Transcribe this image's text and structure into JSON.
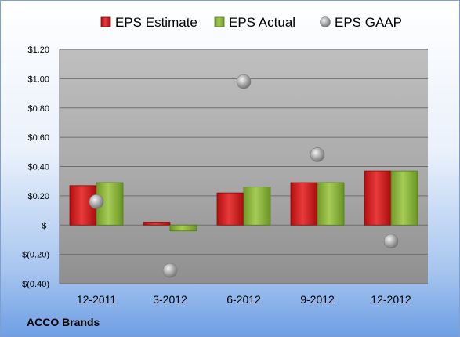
{
  "chart_data": {
    "type": "bar",
    "categories": [
      "12-2011",
      "3-2012",
      "6-2012",
      "9-2012",
      "12-2012"
    ],
    "series": [
      {
        "name": "EPS Estimate",
        "type": "bar",
        "color": "#cc1a1a",
        "values": [
          0.27,
          0.02,
          0.22,
          0.29,
          0.37
        ]
      },
      {
        "name": "EPS Actual",
        "type": "bar",
        "color": "#8cb33a",
        "values": [
          0.29,
          -0.04,
          0.26,
          0.29,
          0.37
        ]
      },
      {
        "name": "EPS GAAP",
        "type": "scatter",
        "color": "#9a9a9a",
        "values": [
          0.16,
          -0.31,
          0.98,
          0.48,
          -0.11
        ]
      }
    ],
    "ylim": [
      -0.4,
      1.2
    ],
    "yticks": [
      1.2,
      1.0,
      0.8,
      0.6,
      0.4,
      0.2,
      0,
      -0.2,
      -0.4
    ],
    "ytick_labels": [
      "$1.20",
      "$1.00",
      "$0.80",
      "$0.60",
      "$0.40",
      "$0.20",
      "$-",
      "$(0.20)",
      "$(0.40)"
    ],
    "legend_position": "top",
    "grid": true
  },
  "company": "ACCO Brands"
}
